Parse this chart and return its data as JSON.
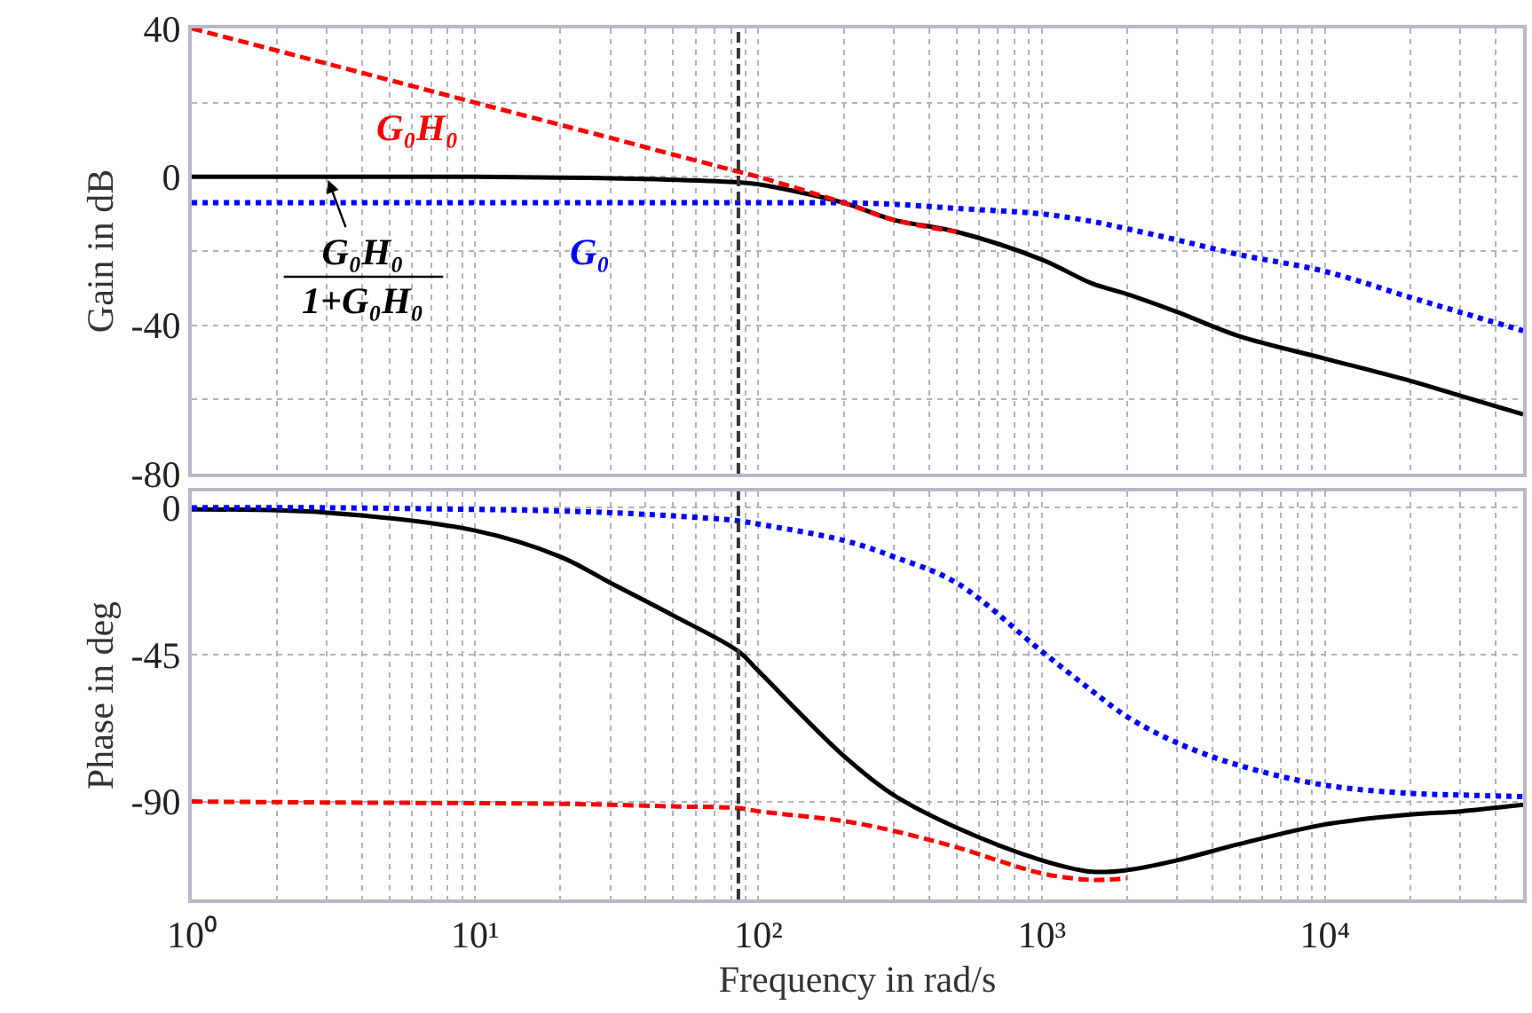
{
  "chart_data": [
    {
      "type": "line",
      "ylabel": "Gain in dB",
      "log": "x",
      "grid": true,
      "tick_labels": "y",
      "xlim": [
        1,
        50000
      ],
      "xticks": [
        {
          "value": 1,
          "label": null
        },
        {
          "value": 2,
          "label": null
        },
        {
          "value": 3,
          "label": null
        },
        {
          "value": 4,
          "label": null
        },
        {
          "value": 5,
          "label": null
        },
        {
          "value": 6,
          "label": null
        },
        {
          "value": 7,
          "label": null
        },
        {
          "value": 8,
          "label": null
        },
        {
          "value": 9,
          "label": null
        },
        {
          "value": 10,
          "label": null
        },
        {
          "value": 20,
          "label": null
        },
        {
          "value": 30,
          "label": null
        },
        {
          "value": 40,
          "label": null
        },
        {
          "value": 50,
          "label": null
        },
        {
          "value": 60,
          "label": null
        },
        {
          "value": 70,
          "label": null
        },
        {
          "value": 80,
          "label": null
        },
        {
          "value": 90,
          "label": null
        },
        {
          "value": 100,
          "label": null
        },
        {
          "value": 200,
          "label": null
        },
        {
          "value": 300,
          "label": null
        },
        {
          "value": 400,
          "label": null
        },
        {
          "value": 500,
          "label": null
        },
        {
          "value": 600,
          "label": null
        },
        {
          "value": 700,
          "label": null
        },
        {
          "value": 800,
          "label": null
        },
        {
          "value": 900,
          "label": null
        },
        {
          "value": 1000,
          "label": null
        },
        {
          "value": 2000,
          "label": null
        },
        {
          "value": 3000,
          "label": null
        },
        {
          "value": 4000,
          "label": null
        },
        {
          "value": 5000,
          "label": null
        },
        {
          "value": 6000,
          "label": null
        },
        {
          "value": 7000,
          "label": null
        },
        {
          "value": 8000,
          "label": null
        },
        {
          "value": 9000,
          "label": null
        },
        {
          "value": 10000,
          "label": null
        },
        {
          "value": 20000,
          "label": null
        },
        {
          "value": 30000,
          "label": null
        },
        {
          "value": 40000,
          "label": null
        }
      ],
      "ylim": [
        -80,
        40
      ],
      "yticks": [
        -80,
        {
          "value": -60,
          "label": null
        },
        -40,
        {
          "value": -20,
          "label": null
        },
        0,
        {
          "value": 20,
          "label": null
        },
        40
      ],
      "x": [
        1,
        3,
        10,
        20,
        30,
        50,
        85,
        100,
        200,
        300,
        500,
        1000,
        1500,
        2000,
        3000,
        5000,
        10000,
        20000,
        30000,
        50000
      ],
      "series": [
        {
          "name": "G₀H₀",
          "color": "#ff0000",
          "line_style": "dashed",
          "values": [
            40,
            30.5,
            20,
            14,
            10.5,
            6,
            1.4,
            0,
            -7,
            -11.6,
            -14.8,
            null,
            null,
            null,
            null,
            null,
            null,
            null,
            null,
            null
          ]
        },
        {
          "name": "G₀H₀\n1+G₀H₀",
          "color": "#000000",
          "line_style": "solid",
          "values": [
            0,
            0,
            0,
            -0.2,
            -0.4,
            -0.8,
            -1.5,
            -2,
            -7,
            -11.6,
            -14.8,
            -22.3,
            -28.7,
            -31.6,
            -36.4,
            -43,
            -49,
            -55,
            -59,
            -64
          ]
        },
        {
          "name": "G₀",
          "color": "#0000ff",
          "line_style": "dotted",
          "values": [
            -7,
            -7,
            -7,
            -7,
            -7,
            -7,
            -7,
            -7,
            -7,
            -7.4,
            -8.5,
            -10,
            -12,
            -14,
            -17,
            -21,
            -25.5,
            -32.5,
            -36.5,
            -41.5
          ]
        }
      ],
      "ref_lines": [
        {
          "axis": "x",
          "value": 85,
          "color": "#333333",
          "line_style": "dashed"
        }
      ]
    },
    {
      "type": "line",
      "ylabel": "Phase in deg",
      "xlabel": "Frequency in rad/s",
      "log": "x",
      "grid": true,
      "xlim": [
        1,
        50000
      ],
      "xticks": [
        {
          "value": 1,
          "label": "10⁰"
        },
        {
          "value": 2,
          "label": null
        },
        {
          "value": 3,
          "label": null
        },
        {
          "value": 4,
          "label": null
        },
        {
          "value": 5,
          "label": null
        },
        {
          "value": 6,
          "label": null
        },
        {
          "value": 7,
          "label": null
        },
        {
          "value": 8,
          "label": null
        },
        {
          "value": 9,
          "label": null
        },
        {
          "value": 10,
          "label": "10¹"
        },
        {
          "value": 20,
          "label": null
        },
        {
          "value": 30,
          "label": null
        },
        {
          "value": 40,
          "label": null
        },
        {
          "value": 50,
          "label": null
        },
        {
          "value": 60,
          "label": null
        },
        {
          "value": 70,
          "label": null
        },
        {
          "value": 80,
          "label": null
        },
        {
          "value": 90,
          "label": null
        },
        {
          "value": 100,
          "label": "10²"
        },
        {
          "value": 200,
          "label": null
        },
        {
          "value": 300,
          "label": null
        },
        {
          "value": 400,
          "label": null
        },
        {
          "value": 500,
          "label": null
        },
        {
          "value": 600,
          "label": null
        },
        {
          "value": 700,
          "label": null
        },
        {
          "value": 800,
          "label": null
        },
        {
          "value": 900,
          "label": null
        },
        {
          "value": 1000,
          "label": "10³"
        },
        {
          "value": 2000,
          "label": null
        },
        {
          "value": 3000,
          "label": null
        },
        {
          "value": 4000,
          "label": null
        },
        {
          "value": 5000,
          "label": null
        },
        {
          "value": 6000,
          "label": null
        },
        {
          "value": 7000,
          "label": null
        },
        {
          "value": 8000,
          "label": null
        },
        {
          "value": 9000,
          "label": null
        },
        {
          "value": 10000,
          "label": "10⁴"
        },
        {
          "value": 20000,
          "label": null
        },
        {
          "value": 30000,
          "label": null
        },
        {
          "value": 40000,
          "label": null
        }
      ],
      "ylim": [
        -120,
        5
      ],
      "yticks": [
        -90,
        -45,
        0
      ],
      "x": [
        1,
        3,
        10,
        20,
        30,
        50,
        85,
        100,
        200,
        300,
        500,
        1000,
        1500,
        2000,
        3000,
        5000,
        10000,
        20000,
        30000,
        50000
      ],
      "series": [
        {
          "color": "#ff0000",
          "line_style": "dashed",
          "values": [
            -90,
            -90.3,
            -90.5,
            -90.7,
            -91,
            -91.5,
            -92,
            -93,
            -96,
            -99,
            -104,
            -112,
            -114,
            -113.5,
            null,
            null,
            null,
            null,
            null,
            null
          ]
        },
        {
          "color": "#000000",
          "line_style": "solid",
          "values": [
            -0.5,
            -1.5,
            -7,
            -15,
            -23,
            -33,
            -44,
            -50,
            -76,
            -88,
            -98,
            -108,
            -111.5,
            -111,
            -108,
            -103,
            -97,
            -94,
            -93,
            -91
          ]
        },
        {
          "color": "#0000ff",
          "line_style": "dotted",
          "values": [
            0,
            0,
            -0.5,
            -1,
            -1.5,
            -2.5,
            -4,
            -5,
            -10,
            -15,
            -23,
            -44,
            -56,
            -64,
            -72,
            -79,
            -85,
            -87.5,
            -88,
            -88.5
          ]
        }
      ],
      "ref_lines": [
        {
          "axis": "x",
          "value": 85,
          "color": "#333333",
          "line_style": "dashed"
        }
      ]
    }
  ]
}
